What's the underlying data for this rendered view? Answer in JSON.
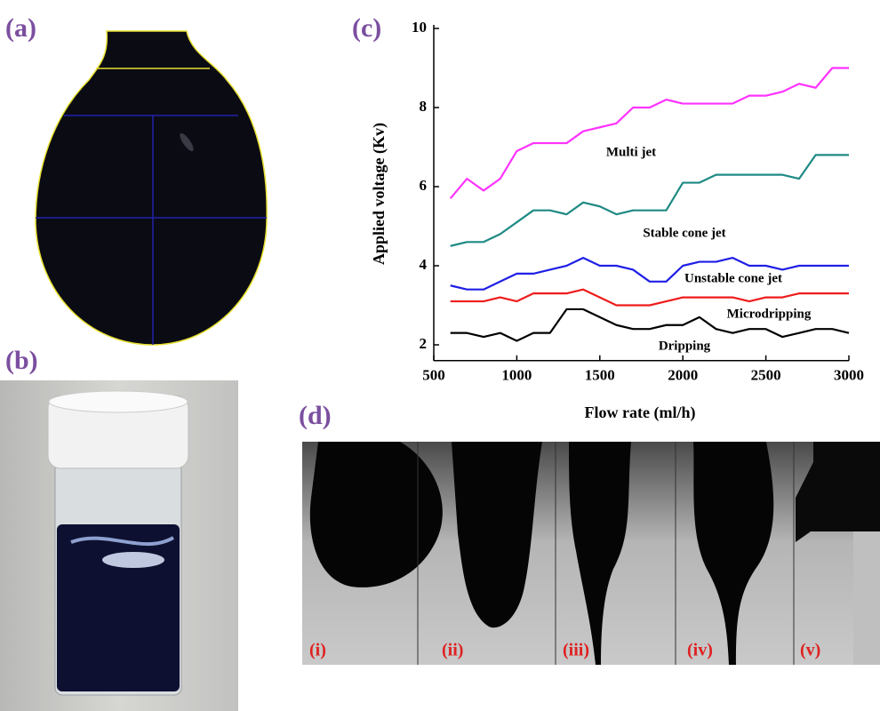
{
  "panels": [
    "(a)",
    "(b)",
    "(c)",
    "(d)"
  ],
  "subpanels": [
    "(i)",
    "(ii)",
    "(iii)",
    "(iv)",
    "(v)"
  ],
  "chart_data": {
    "type": "line",
    "x_label": "Flow rate (ml/h)",
    "y_label": "Applied voltage (Kv)",
    "x": [
      600,
      700,
      800,
      900,
      1000,
      1100,
      1200,
      1300,
      1400,
      1500,
      1600,
      1700,
      1800,
      1900,
      2000,
      2100,
      2200,
      2300,
      2400,
      2500,
      2600,
      2700,
      2800,
      2900,
      3000
    ],
    "series": [
      {
        "name": "Multi jet",
        "color": "#ff33ff",
        "values": [
          5.7,
          6.2,
          5.9,
          6.2,
          6.9,
          7.1,
          7.1,
          7.1,
          7.4,
          7.5,
          7.6,
          8.0,
          8.0,
          8.2,
          8.1,
          8.1,
          8.1,
          8.1,
          8.3,
          8.3,
          8.4,
          8.6,
          8.5,
          9.0,
          9.0
        ]
      },
      {
        "name": "Stable cone jet",
        "color": "#1f8a84",
        "values": [
          4.5,
          4.6,
          4.6,
          4.8,
          5.1,
          5.4,
          5.4,
          5.3,
          5.6,
          5.5,
          5.3,
          5.4,
          5.4,
          5.4,
          6.1,
          6.1,
          6.3,
          6.3,
          6.3,
          6.3,
          6.3,
          6.2,
          6.8,
          6.8,
          6.8
        ]
      },
      {
        "name": "Unstable cone jet",
        "color": "#1f1fe6",
        "values": [
          3.5,
          3.4,
          3.4,
          3.6,
          3.8,
          3.8,
          3.9,
          4.0,
          4.2,
          4.0,
          4.0,
          3.9,
          3.6,
          3.6,
          4.0,
          4.1,
          4.1,
          4.2,
          4.0,
          4.0,
          3.9,
          4.0,
          4.0,
          4.0,
          4.0
        ]
      },
      {
        "name": "Microdripping",
        "color": "#ee1c1c",
        "values": [
          3.1,
          3.1,
          3.1,
          3.2,
          3.1,
          3.3,
          3.3,
          3.3,
          3.4,
          3.2,
          3.0,
          3.0,
          3.0,
          3.1,
          3.2,
          3.2,
          3.2,
          3.2,
          3.1,
          3.2,
          3.2,
          3.3,
          3.3,
          3.3,
          3.3
        ]
      },
      {
        "name": "Dripping",
        "color": "#000000",
        "values": [
          2.3,
          2.3,
          2.2,
          2.3,
          2.1,
          2.3,
          2.3,
          2.9,
          2.9,
          2.7,
          2.5,
          2.4,
          2.4,
          2.5,
          2.5,
          2.7,
          2.4,
          2.3,
          2.4,
          2.4,
          2.2,
          2.3,
          2.4,
          2.4,
          2.3
        ]
      }
    ],
    "xlim": [
      500,
      3000
    ],
    "ylim": [
      1.6,
      10
    ],
    "xticks": [
      500,
      1000,
      1500,
      2000,
      2500,
      3000
    ],
    "yticks": [
      2,
      4,
      6,
      8,
      10
    ]
  }
}
